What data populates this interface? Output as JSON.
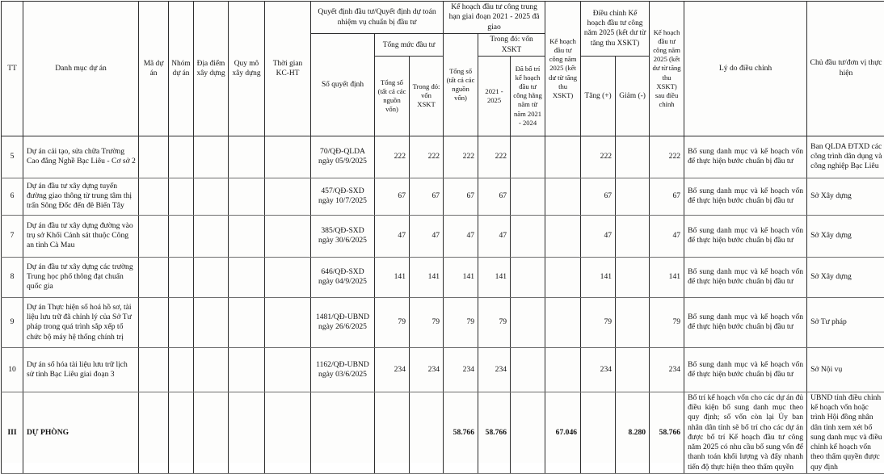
{
  "header": {
    "tt": "TT",
    "danh_muc": "Danh mục dự án",
    "ma_du_an": "Mã dự án",
    "nhom_du_an": "Nhóm dự án",
    "dia_diem": "Địa điểm xây dựng",
    "quy_mo": "Quy mô xây dựng",
    "thoi_gian": "Thời gian KC-HT",
    "qd_group": "Quyết định đầu tư/Quyết định dự toán nhiệm vụ chuẩn bị đầu tư",
    "so_quyet_dinh": "Số quyết định",
    "tmdt_group": "Tổng mức đầu tư",
    "tmdt_tong_so": "Tổng số (tất cả các nguồn vốn)",
    "tmdt_trong_do": "Trong đó: vốn XSKT",
    "khth_group": "Kế hoạch đầu tư công trung hạn giai đoạn 2021 - 2025 đã giao",
    "khth_tong_so": "Tổng số (tất cả các nguồn vốn)",
    "khth_trong_do": "Trong đó: vốn XSKT",
    "nam_2021_2025": "2021 - 2025",
    "da_bo_tri": "Đã bố trí kế hoạch đầu tư công hằng năm từ năm 2021 - 2024",
    "kh_2025": "Kế hoạch đầu tư công năm 2025 (kết dư từ tăng thu XSKT)",
    "dieu_chinh_group": "Điều chỉnh Kế hoạch đầu tư công năm 2025 (kết dư từ tăng thu XSKT)",
    "tang": "Tăng (+)",
    "giam": "Giảm (-)",
    "sau_dieu_chinh": "Kế hoạch đầu tư công năm 2025 (kết dư từ tăng thu XSKT) sau điều chỉnh",
    "ly_do": "Lý do điều chỉnh",
    "chu_dau_tu": "Chủ đầu tư/đơn vị thực hiện"
  },
  "rows": [
    {
      "tt": "5",
      "name": "Dự án cải tạo, sửa chữa Trường Cao đẳng Nghề Bạc Liêu - Cơ sở 2",
      "ma": "",
      "nhom": "",
      "dia_diem": "",
      "quy_mo": "",
      "thoi_gian": "",
      "so_qd": "70/QĐ-QLDA ngày 05/9/2025",
      "tmdt_tong": "222",
      "tmdt_xskt": "222",
      "khth_tong": "222",
      "nam_2021_2025": "222",
      "da_bo_tri": "",
      "kh_2025": "",
      "tang": "222",
      "giam": "",
      "sau_dc": "222",
      "ly_do": "Bổ sung danh mục và kế hoạch vốn để thực hiện bước chuẩn bị đầu tư",
      "chu_dau_tu": "Ban QLDA ĐTXD các công trình dân dụng và công nghiệp Bạc Liêu"
    },
    {
      "tt": "6",
      "name": "Dự án đầu tư xây dựng tuyến đường giao thông từ trung tâm thị trấn Sông Đốc đến đê Biển Tây",
      "ma": "",
      "nhom": "",
      "dia_diem": "",
      "quy_mo": "",
      "thoi_gian": "",
      "so_qd": "457/QĐ-SXD ngày 10/7/2025",
      "tmdt_tong": "67",
      "tmdt_xskt": "67",
      "khth_tong": "67",
      "nam_2021_2025": "67",
      "da_bo_tri": "",
      "kh_2025": "",
      "tang": "67",
      "giam": "",
      "sau_dc": "67",
      "ly_do": "Bổ sung danh mục và kế hoạch vốn để thực hiện bước chuẩn bị đầu tư",
      "chu_dau_tu": "Sở Xây dựng"
    },
    {
      "tt": "7",
      "name": "Dự án đầu tư xây dựng đường vào trụ sở Khối Cảnh sát thuộc Công an tỉnh Cà Mau",
      "ma": "",
      "nhom": "",
      "dia_diem": "",
      "quy_mo": "",
      "thoi_gian": "",
      "so_qd": "385/QĐ-SXD ngày 30/6/2025",
      "tmdt_tong": "47",
      "tmdt_xskt": "47",
      "khth_tong": "47",
      "nam_2021_2025": "47",
      "da_bo_tri": "",
      "kh_2025": "",
      "tang": "47",
      "giam": "",
      "sau_dc": "47",
      "ly_do": "Bổ sung danh mục và kế hoạch vốn để thực hiện bước chuẩn bị đầu tư",
      "chu_dau_tu": "Sở Xây dựng"
    },
    {
      "tt": "8",
      "name": "Dự án đầu tư xây dựng các trường Trung học phổ thông đạt chuẩn quốc gia",
      "ma": "",
      "nhom": "",
      "dia_diem": "",
      "quy_mo": "",
      "thoi_gian": "",
      "so_qd": "646/QĐ-SXD ngày 04/9/2025",
      "tmdt_tong": "141",
      "tmdt_xskt": "141",
      "khth_tong": "141",
      "nam_2021_2025": "141",
      "da_bo_tri": "",
      "kh_2025": "",
      "tang": "141",
      "giam": "",
      "sau_dc": "141",
      "ly_do": "Bổ sung danh mục và kế hoạch vốn để thực hiện bước chuẩn bị đầu tư",
      "chu_dau_tu": "Sở Xây dựng"
    },
    {
      "tt": "9",
      "name": "Dự án Thực hiện số hoá hồ sơ, tài liệu lưu trữ đã chỉnh lý của Sở Tư pháp trong quá trình sắp xếp tổ chức bộ máy hệ thống chính trị",
      "ma": "",
      "nhom": "",
      "dia_diem": "",
      "quy_mo": "",
      "thoi_gian": "",
      "so_qd": "1481/QĐ-UBND ngày 26/6/2025",
      "tmdt_tong": "79",
      "tmdt_xskt": "79",
      "khth_tong": "79",
      "nam_2021_2025": "79",
      "da_bo_tri": "",
      "kh_2025": "",
      "tang": "79",
      "giam": "",
      "sau_dc": "79",
      "ly_do": "Bổ sung danh mục và kế hoạch vốn để thực hiện bước chuẩn bị đầu tư",
      "chu_dau_tu": "Sở Tư pháp"
    },
    {
      "tt": "10",
      "name": "Dự án số hóa tài liệu lưu trữ lịch sử tỉnh Bạc Liêu giai đoạn 3",
      "ma": "",
      "nhom": "",
      "dia_diem": "",
      "quy_mo": "",
      "thoi_gian": "",
      "so_qd": "1162/QĐ-UBND ngày 03/6/2025",
      "tmdt_tong": "234",
      "tmdt_xskt": "234",
      "khth_tong": "234",
      "nam_2021_2025": "234",
      "da_bo_tri": "",
      "kh_2025": "",
      "tang": "234",
      "giam": "",
      "sau_dc": "234",
      "ly_do": "Bổ sung danh mục và kế hoạch vốn để thực hiện bước chuẩn bị đầu tư",
      "chu_dau_tu": "Sở Nội vụ"
    },
    {
      "tt": "III",
      "name": "DỰ PHÒNG",
      "bold": true,
      "ma": "",
      "nhom": "",
      "dia_diem": "",
      "quy_mo": "",
      "thoi_gian": "",
      "so_qd": "",
      "tmdt_tong": "",
      "tmdt_xskt": "",
      "khth_tong": "58.766",
      "nam_2021_2025": "58.766",
      "da_bo_tri": "",
      "kh_2025": "67.046",
      "tang": "",
      "giam": "8.280",
      "sau_dc": "58.766",
      "ly_do": "Bố trí kế hoạch vốn cho các dự án đủ điều kiện bổ sung danh mục theo quy định; số vốn còn lại Ủy ban nhân dân tỉnh sẽ bố trí cho các dự án được bố trí Kế hoạch đầu tư công năm 2025 có nhu cầu bổ sung vốn để thanh toán khối lượng và đẩy nhanh tiến độ thực hiện theo thẩm quyền",
      "chu_dau_tu": "UBND tỉnh điều chỉnh kế hoạch vốn hoặc trình Hội đồng nhân dân tỉnh xem xét bổ sung danh mục và điều chỉnh kế hoạch vốn theo thẩm quyền được quy định"
    }
  ]
}
